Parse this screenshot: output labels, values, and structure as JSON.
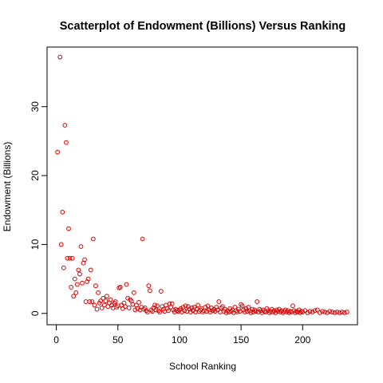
{
  "chart_data": {
    "type": "scatter",
    "title": "Scatterplot of Endowment (Billions) Versus Ranking",
    "xlabel": "School Ranking",
    "ylabel": "Endowment (Billions)",
    "xlim": [
      -7.5,
      244.5
    ],
    "ylim": [
      -1.65,
      38.65
    ],
    "x_ticks": [
      0,
      50,
      100,
      150,
      200
    ],
    "y_ticks": [
      0,
      10,
      20,
      30
    ],
    "grid": false,
    "legend": "none",
    "point_color": "#dd0000",
    "points": [
      [
        1,
        23.4
      ],
      [
        3,
        37.2
      ],
      [
        4,
        10
      ],
      [
        5,
        14.7
      ],
      [
        6,
        6.6
      ],
      [
        7,
        27.3
      ],
      [
        8,
        24.8
      ],
      [
        9,
        8
      ],
      [
        10,
        12.3
      ],
      [
        11,
        8
      ],
      [
        12,
        3.8
      ],
      [
        13,
        8
      ],
      [
        14,
        2.5
      ],
      [
        15,
        5
      ],
      [
        16,
        3
      ],
      [
        17,
        4.2
      ],
      [
        18,
        6.3
      ],
      [
        19,
        5.7
      ],
      [
        20,
        9.7
      ],
      [
        21,
        4.4
      ],
      [
        22,
        7.3
      ],
      [
        23,
        7.8
      ],
      [
        24,
        1.7
      ],
      [
        25,
        4.6
      ],
      [
        26,
        5
      ],
      [
        27,
        1.7
      ],
      [
        28,
        6.3
      ],
      [
        29,
        1.7
      ],
      [
        30,
        10.8
      ],
      [
        31,
        1.2
      ],
      [
        32,
        4
      ],
      [
        33,
        0.6
      ],
      [
        34,
        3
      ],
      [
        35,
        1.5
      ],
      [
        36,
        1.8
      ],
      [
        37,
        0.8
      ],
      [
        38,
        2.2
      ],
      [
        39,
        1.2
      ],
      [
        40,
        1.8
      ],
      [
        41,
        2.5
      ],
      [
        42,
        1
      ],
      [
        43,
        1.5
      ],
      [
        44,
        2
      ],
      [
        45,
        1.2
      ],
      [
        46,
        0.8
      ],
      [
        47,
        1.5
      ],
      [
        48,
        1.7
      ],
      [
        49,
        0.9
      ],
      [
        50,
        1.1
      ],
      [
        51,
        3.7
      ],
      [
        52,
        3.8
      ],
      [
        53,
        1.2
      ],
      [
        54,
        0.7
      ],
      [
        55,
        1.5
      ],
      [
        56,
        1
      ],
      [
        57,
        4.2
      ],
      [
        58,
        2.2
      ],
      [
        59,
        0.8
      ],
      [
        60,
        2
      ],
      [
        61,
        1.8
      ],
      [
        62,
        1.3
      ],
      [
        63,
        3
      ],
      [
        64,
        0.5
      ],
      [
        65,
        1.2
      ],
      [
        66,
        0.7
      ],
      [
        67,
        1.6
      ],
      [
        68,
        0.5
      ],
      [
        69,
        0.9
      ],
      [
        70,
        10.8
      ],
      [
        71,
        0.6
      ],
      [
        72,
        0.8
      ],
      [
        73,
        0.4
      ],
      [
        74,
        0.2
      ],
      [
        75,
        4
      ],
      [
        76,
        3.3
      ],
      [
        77,
        0.5
      ],
      [
        78,
        0.3
      ],
      [
        79,
        0.8
      ],
      [
        80,
        1.2
      ],
      [
        81,
        0.5
      ],
      [
        82,
        1.1
      ],
      [
        83,
        0.4
      ],
      [
        84,
        0.2
      ],
      [
        85,
        3.2
      ],
      [
        86,
        1
      ],
      [
        87,
        0.6
      ],
      [
        88,
        0.3
      ],
      [
        89,
        1.2
      ],
      [
        90,
        0.7
      ],
      [
        91,
        0.4
      ],
      [
        92,
        1.4
      ],
      [
        93,
        0.9
      ],
      [
        94,
        1.4
      ],
      [
        95,
        0.5
      ],
      [
        96,
        0.2
      ],
      [
        97,
        0.6
      ],
      [
        98,
        0.4
      ],
      [
        99,
        0.3
      ],
      [
        100,
        0.5
      ],
      [
        101,
        0.7
      ],
      [
        102,
        0.2
      ],
      [
        103,
        0.9
      ],
      [
        104,
        0.4
      ],
      [
        105,
        1.1
      ],
      [
        106,
        0.3
      ],
      [
        107,
        1
      ],
      [
        108,
        0.6
      ],
      [
        109,
        0.2
      ],
      [
        110,
        0.8
      ],
      [
        111,
        0.4
      ],
      [
        112,
        0.9
      ],
      [
        113,
        0.2
      ],
      [
        114,
        0.6
      ],
      [
        115,
        1.2
      ],
      [
        116,
        0.3
      ],
      [
        117,
        0.5
      ],
      [
        118,
        0.7
      ],
      [
        119,
        0.2
      ],
      [
        120,
        0.4
      ],
      [
        121,
        0.9
      ],
      [
        122,
        0.3
      ],
      [
        123,
        1.1
      ],
      [
        124,
        0.5
      ],
      [
        125,
        0.2
      ],
      [
        126,
        0.8
      ],
      [
        127,
        0.4
      ],
      [
        128,
        0.6
      ],
      [
        129,
        0.3
      ],
      [
        130,
        0.9
      ],
      [
        131,
        0.5
      ],
      [
        132,
        1.7
      ],
      [
        133,
        0.2
      ],
      [
        134,
        0.8
      ],
      [
        135,
        1
      ],
      [
        136,
        0.3
      ],
      [
        137,
        0.6
      ],
      [
        138,
        0.1
      ],
      [
        139,
        0.4
      ],
      [
        140,
        0.2
      ],
      [
        141,
        0.7
      ],
      [
        142,
        0.3
      ],
      [
        143,
        0.5
      ],
      [
        144,
        0.1
      ],
      [
        145,
        0.9
      ],
      [
        146,
        0.4
      ],
      [
        147,
        0.2
      ],
      [
        148,
        0.6
      ],
      [
        149,
        0.3
      ],
      [
        150,
        1.3
      ],
      [
        151,
        1.1
      ],
      [
        152,
        0.5
      ],
      [
        153,
        0.2
      ],
      [
        154,
        0.7
      ],
      [
        155,
        0.3
      ],
      [
        156,
        0.9
      ],
      [
        157,
        0.4
      ],
      [
        158,
        0.1
      ],
      [
        159,
        0.6
      ],
      [
        160,
        0.2
      ],
      [
        161,
        0.5
      ],
      [
        162,
        0.3
      ],
      [
        163,
        1.7
      ],
      [
        164,
        0.2
      ],
      [
        165,
        0.6
      ],
      [
        166,
        0.4
      ],
      [
        167,
        0.1
      ],
      [
        168,
        0.5
      ],
      [
        169,
        0.3
      ],
      [
        170,
        0.2
      ],
      [
        171,
        0.7
      ],
      [
        172,
        0.4
      ],
      [
        173,
        0.1
      ],
      [
        174,
        0.3
      ],
      [
        175,
        0.6
      ],
      [
        176,
        0.2
      ],
      [
        177,
        0.4
      ],
      [
        178,
        0.1
      ],
      [
        179,
        0.5
      ],
      [
        180,
        0.3
      ],
      [
        181,
        0.6
      ],
      [
        182,
        0.2
      ],
      [
        183,
        0.4
      ],
      [
        184,
        0.1
      ],
      [
        185,
        0.3
      ],
      [
        186,
        0.5
      ],
      [
        187,
        0.2
      ],
      [
        188,
        0.4
      ],
      [
        189,
        0.1
      ],
      [
        190,
        0.3
      ],
      [
        191,
        0.2
      ],
      [
        192,
        1.1
      ],
      [
        193,
        0.4
      ],
      [
        194,
        0.1
      ],
      [
        195,
        0.3
      ],
      [
        196,
        0.2
      ],
      [
        197,
        0.5
      ],
      [
        198,
        0.1
      ],
      [
        199,
        0.3
      ],
      [
        200,
        0.2
      ],
      [
        202,
        0.4
      ],
      [
        204,
        0.1
      ],
      [
        206,
        0.3
      ],
      [
        208,
        0.2
      ],
      [
        210,
        0.4
      ],
      [
        212,
        0.5
      ],
      [
        214,
        0.1
      ],
      [
        216,
        0.3
      ],
      [
        218,
        0.2
      ],
      [
        220,
        0.1
      ],
      [
        222,
        0.3
      ],
      [
        224,
        0.2
      ],
      [
        226,
        0.1
      ],
      [
        228,
        0.2
      ],
      [
        230,
        0.1
      ],
      [
        232,
        0.2
      ],
      [
        234,
        0.1
      ],
      [
        236,
        0.2
      ]
    ]
  }
}
